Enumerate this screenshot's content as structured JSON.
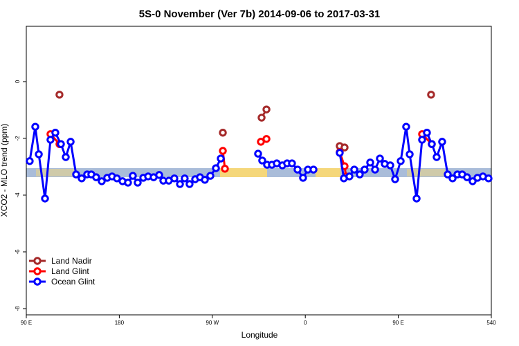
{
  "chart_data": {
    "type": "line",
    "title": "5S-0 November (Ver 7b)   2014-09-06 to 2017-03-31",
    "x_label": "Longitude",
    "y_label": "XCO2 - MLO trend (ppm)",
    "xlim": [
      90,
      540
    ],
    "ylim": [
      -8.22,
      1.95
    ],
    "xticks": [
      {
        "value": 90,
        "label": "90 E"
      },
      180,
      {
        "value": 270,
        "label": "90 W"
      },
      {
        "value": 360,
        "label": "0"
      },
      {
        "value": 450,
        "label": "90 E"
      },
      540
    ],
    "yticks": [
      0,
      -2,
      -4,
      -6,
      -8
    ],
    "legend": "bottomleft",
    "series": [
      {
        "name": "Land Nadir",
        "color": "#a52a2a",
        "x": [
          122.1,
          null,
          280.2,
          null,
          317.7,
          322.4,
          null,
          393.3,
          398.0,
          null,
          481.7
        ],
        "values": [
          -0.46,
          null,
          -1.8,
          null,
          -1.27,
          -0.98,
          null,
          -2.27,
          -2.32,
          null,
          -0.46
        ]
      },
      {
        "name": "Land Glint",
        "color": "#ff0000",
        "x": [
          113.4,
          122.1,
          null,
          280.2,
          282.2,
          null,
          317.0,
          322.4,
          null,
          393.3,
          398.0,
          399.4,
          null,
          473.0,
          482.4
        ],
        "values": [
          -1.85,
          -2.2,
          null,
          -2.44,
          -3.07,
          null,
          -2.12,
          -2.02,
          null,
          -2.49,
          -2.98,
          -3.34,
          null,
          -1.85,
          -2.2
        ]
      },
      {
        "name": "Ocean Glint",
        "color": "#0000ff",
        "x": [
          93.3,
          98.7,
          102.1,
          108.1,
          113.4,
          118.1,
          123.5,
          128.2,
          132.9,
          138.2,
          143.6,
          148.9,
          152.9,
          157.6,
          163.0,
          168.3,
          173.0,
          177.7,
          183.1,
          188.4,
          193.1,
          197.8,
          203.2,
          207.9,
          213.2,
          218.6,
          222.6,
          227.9,
          233.3,
          238.7,
          243.3,
          248.0,
          253.4,
          258.1,
          262.8,
          268.1,
          273.5,
          278.2,
          null,
          314.3,
          318.3,
          323.0,
          327.7,
          332.4,
          337.8,
          342.4,
          347.1,
          352.5,
          357.8,
          362.5,
          367.9,
          null,
          393.3,
          397.3,
          402.7,
          407.4,
          412.7,
          417.4,
          422.8,
          427.5,
          432.2,
          436.9,
          442.2,
          446.9,
          452.3,
          457.6,
          461.0,
          467.7,
          473.0,
          477.7,
          482.4,
          487.1,
          492.4,
          497.8,
          502.5,
          507.2,
          511.8,
          516.5,
          521.9,
          526.6,
          531.9,
          537.3
        ],
        "values": [
          -2.8,
          -1.59,
          -2.56,
          -4.12,
          -2.05,
          -1.8,
          -2.2,
          -2.66,
          -2.12,
          -3.27,
          -3.41,
          -3.27,
          -3.27,
          -3.37,
          -3.51,
          -3.39,
          -3.34,
          -3.41,
          -3.51,
          -3.56,
          -3.32,
          -3.56,
          -3.39,
          -3.34,
          -3.37,
          -3.29,
          -3.49,
          -3.49,
          -3.41,
          -3.61,
          -3.41,
          -3.61,
          -3.44,
          -3.37,
          -3.46,
          -3.32,
          -3.05,
          -2.71,
          null,
          -2.54,
          -2.78,
          -2.93,
          -2.93,
          -2.88,
          -2.95,
          -2.88,
          -2.88,
          -3.1,
          -3.39,
          -3.1,
          -3.1,
          null,
          -2.51,
          -3.41,
          -3.34,
          -3.1,
          -3.27,
          -3.1,
          -2.85,
          -3.1,
          -2.71,
          -2.9,
          -2.95,
          -3.44,
          -2.8,
          -1.59,
          -2.56,
          -4.12,
          -2.05,
          -1.8,
          -2.2,
          -2.66,
          -2.12,
          -3.27,
          -3.41,
          -3.27,
          -3.27,
          -3.37,
          -3.51,
          -3.39,
          -3.34,
          -3.41
        ]
      }
    ]
  }
}
